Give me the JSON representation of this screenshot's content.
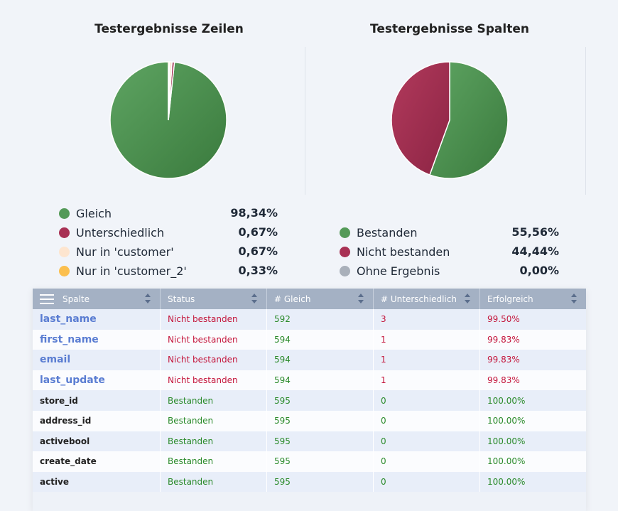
{
  "charts": {
    "rows": {
      "title": "Testergebnisse Zeilen"
    },
    "cols": {
      "title": "Testergebnisse Spalten"
    }
  },
  "legend_rows": [
    {
      "label": "Gleich",
      "value": "98,34%",
      "color": "#549a58"
    },
    {
      "label": "Unterschiedlich",
      "value": "0,67%",
      "color": "#a83154"
    },
    {
      "label": "Nur in 'customer'",
      "value": "0,67%",
      "color": "#fde5cf"
    },
    {
      "label": "Nur in 'customer_2'",
      "value": "0,33%",
      "color": "#fbbf4e"
    }
  ],
  "legend_cols": [
    {
      "label": "Bestanden",
      "value": "55,56%",
      "color": "#549a58"
    },
    {
      "label": "Nicht bestanden",
      "value": "44,44%",
      "color": "#a83154"
    },
    {
      "label": "Ohne Ergebnis",
      "value": "0,00%",
      "color": "#a9b0ba"
    }
  ],
  "chart_data": [
    {
      "type": "pie",
      "title": "Testergebnisse Zeilen",
      "categories": [
        "Gleich",
        "Unterschiedlich",
        "Nur in 'customer'",
        "Nur in 'customer_2'"
      ],
      "values": [
        98.34,
        0.67,
        0.67,
        0.33
      ]
    },
    {
      "type": "pie",
      "title": "Testergebnisse Spalten",
      "categories": [
        "Bestanden",
        "Nicht bestanden",
        "Ohne Ergebnis"
      ],
      "values": [
        55.56,
        44.44,
        0.0
      ]
    }
  ],
  "table": {
    "headers": [
      "Spalte",
      "Status",
      "# Gleich",
      "# Unterschiedlich",
      "Erfolgreich"
    ],
    "rows": [
      {
        "spalte": "last_name",
        "status": "Nicht bestanden",
        "gleich": "592",
        "unterschiedlich": "3",
        "erfolgreich": "99.50%",
        "failed": true
      },
      {
        "spalte": "first_name",
        "status": "Nicht bestanden",
        "gleich": "594",
        "unterschiedlich": "1",
        "erfolgreich": "99.83%",
        "failed": true
      },
      {
        "spalte": "email",
        "status": "Nicht bestanden",
        "gleich": "594",
        "unterschiedlich": "1",
        "erfolgreich": "99.83%",
        "failed": true
      },
      {
        "spalte": "last_update",
        "status": "Nicht bestanden",
        "gleich": "594",
        "unterschiedlich": "1",
        "erfolgreich": "99.83%",
        "failed": true
      },
      {
        "spalte": "store_id",
        "status": "Bestanden",
        "gleich": "595",
        "unterschiedlich": "0",
        "erfolgreich": "100.00%",
        "failed": false
      },
      {
        "spalte": "address_id",
        "status": "Bestanden",
        "gleich": "595",
        "unterschiedlich": "0",
        "erfolgreich": "100.00%",
        "failed": false
      },
      {
        "spalte": "activebool",
        "status": "Bestanden",
        "gleich": "595",
        "unterschiedlich": "0",
        "erfolgreich": "100.00%",
        "failed": false
      },
      {
        "spalte": "create_date",
        "status": "Bestanden",
        "gleich": "595",
        "unterschiedlich": "0",
        "erfolgreich": "100.00%",
        "failed": false
      },
      {
        "spalte": "active",
        "status": "Bestanden",
        "gleich": "595",
        "unterschiedlich": "0",
        "erfolgreich": "100.00%",
        "failed": false
      }
    ]
  }
}
